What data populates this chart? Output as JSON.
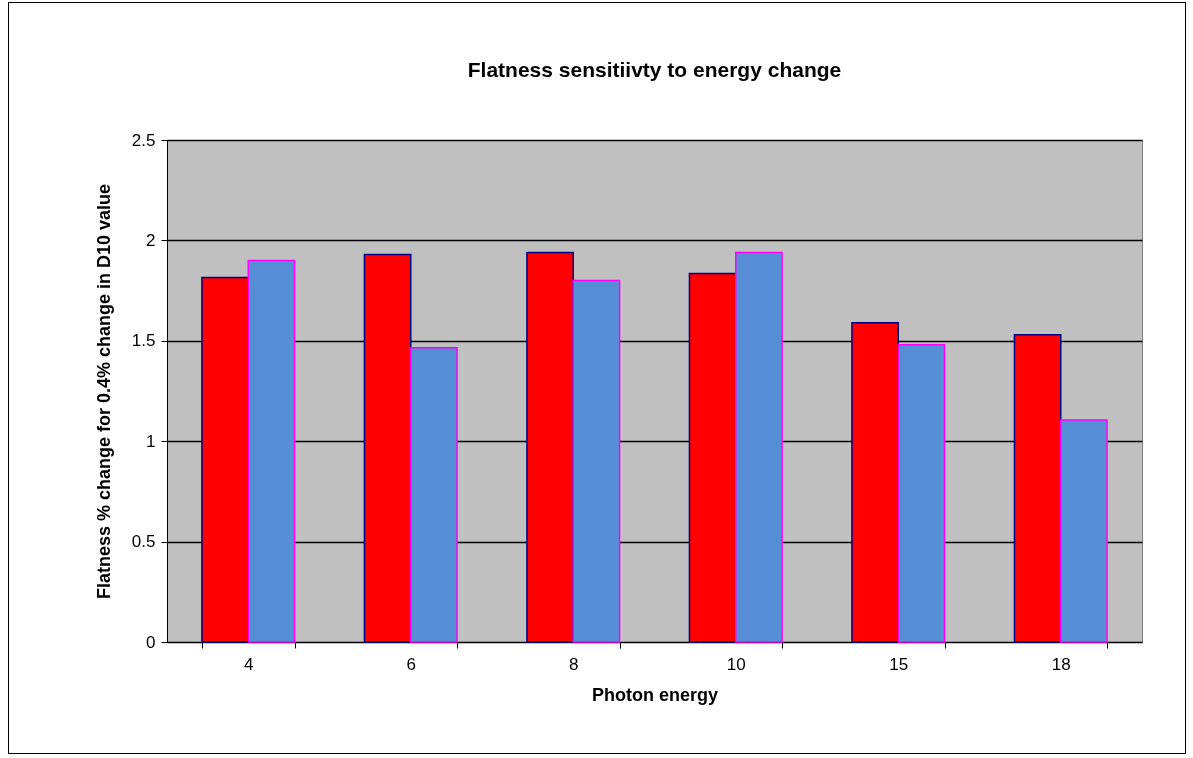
{
  "chart_data": {
    "type": "bar",
    "title": "Flatness sensitiivty to energy change",
    "xlabel": "Photon energy",
    "ylabel": "Flatness % change for 0.4% change in D10 value",
    "categories": [
      "4",
      "6",
      "8",
      "10",
      "15",
      "18"
    ],
    "series": [
      {
        "color": "#ff0000",
        "values": [
          1.815,
          1.93,
          1.94,
          1.835,
          1.59,
          1.53
        ]
      },
      {
        "color": "#558ed5",
        "values": [
          1.9,
          1.465,
          1.8,
          1.94,
          1.48,
          1.105
        ]
      }
    ],
    "ylim": [
      0,
      2.5
    ],
    "yticks": [
      0,
      0.5,
      1,
      1.5,
      2,
      2.5
    ],
    "grid": "y"
  }
}
